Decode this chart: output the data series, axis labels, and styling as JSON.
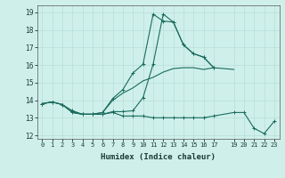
{
  "background_color": "#cff0ea",
  "grid_color": "#b8ddd8",
  "line_color": "#1a6b5e",
  "xlim": [
    -0.5,
    23.5
  ],
  "ylim": [
    11.8,
    19.4
  ],
  "xticks": [
    0,
    1,
    2,
    3,
    4,
    5,
    6,
    7,
    8,
    9,
    10,
    11,
    12,
    13,
    14,
    15,
    16,
    17,
    19,
    20,
    21,
    22,
    23
  ],
  "yticks": [
    12,
    13,
    14,
    15,
    16,
    17,
    18,
    19
  ],
  "xlabel": "Humidex (Indice chaleur)",
  "series": [
    {
      "x": [
        0,
        1,
        2,
        3,
        4,
        5,
        6,
        7,
        8,
        9,
        10,
        11,
        12,
        13,
        14,
        15,
        16,
        17,
        19,
        20,
        21,
        22,
        23
      ],
      "y": [
        13.8,
        13.9,
        13.75,
        13.3,
        13.2,
        13.2,
        13.2,
        13.3,
        13.1,
        13.1,
        13.1,
        13.0,
        13.0,
        13.0,
        13.0,
        13.0,
        13.0,
        13.1,
        13.3,
        13.3,
        12.4,
        12.1,
        12.8
      ],
      "marker": true
    },
    {
      "x": [
        0,
        1,
        2,
        3,
        4,
        5,
        6,
        7,
        8,
        9,
        10,
        11,
        12,
        13,
        14,
        15,
        16,
        17,
        19
      ],
      "y": [
        13.8,
        13.9,
        13.75,
        13.3,
        13.2,
        13.2,
        13.3,
        14.0,
        14.4,
        14.7,
        15.1,
        15.3,
        15.6,
        15.8,
        15.85,
        15.85,
        15.75,
        15.85,
        15.75
      ],
      "marker": false
    },
    {
      "x": [
        0,
        1,
        2,
        3,
        4,
        5,
        6,
        7,
        8,
        9,
        10,
        11,
        12,
        13,
        14,
        15,
        16,
        17
      ],
      "y": [
        13.8,
        13.9,
        13.75,
        13.4,
        13.2,
        13.2,
        13.3,
        14.1,
        14.6,
        15.55,
        16.05,
        18.9,
        18.5,
        18.45,
        17.15,
        16.65,
        16.45,
        15.85
      ],
      "marker": true
    },
    {
      "x": [
        3,
        4,
        5,
        6,
        7,
        8,
        9,
        10,
        11,
        12,
        13,
        14,
        15,
        16,
        17
      ],
      "y": [
        13.35,
        13.2,
        13.2,
        13.2,
        13.35,
        13.35,
        13.4,
        14.15,
        16.05,
        18.9,
        18.45,
        17.15,
        16.65,
        16.45,
        15.85
      ],
      "marker": true
    }
  ]
}
